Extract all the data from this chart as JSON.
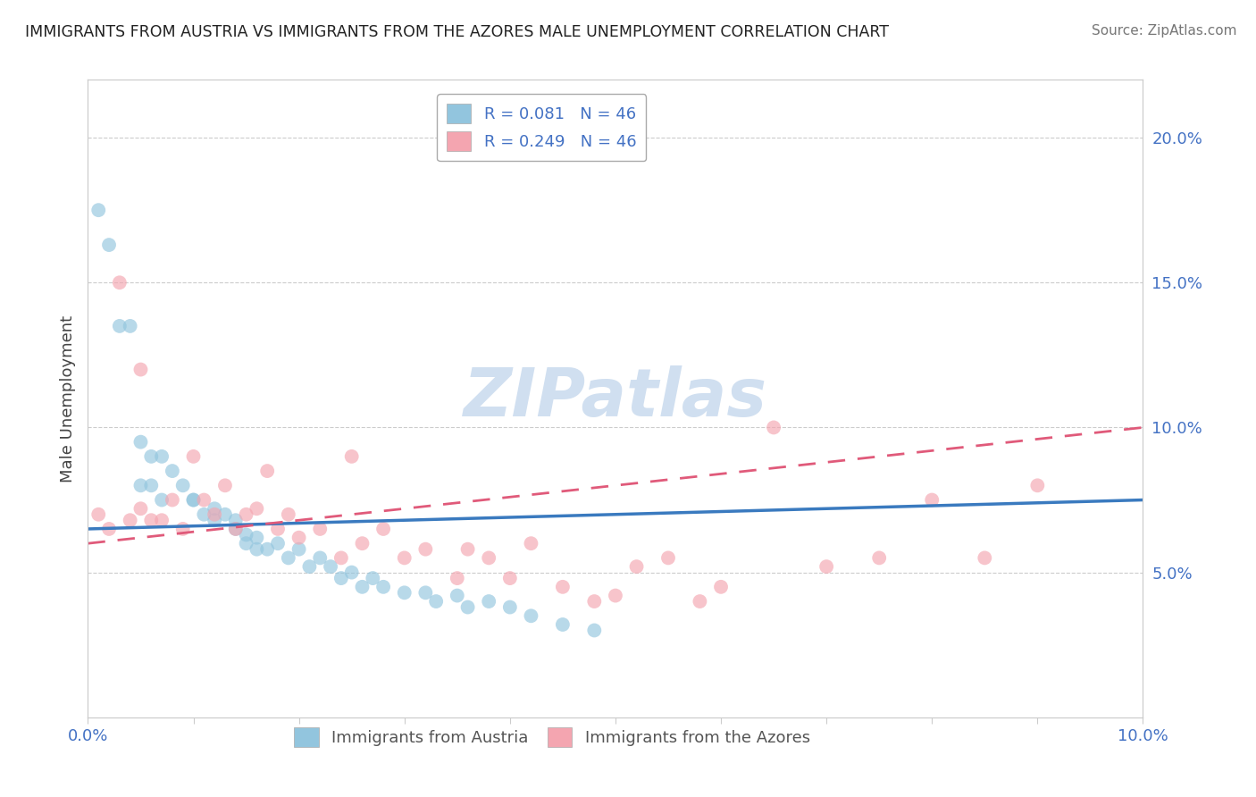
{
  "title": "IMMIGRANTS FROM AUSTRIA VS IMMIGRANTS FROM THE AZORES MALE UNEMPLOYMENT CORRELATION CHART",
  "source": "Source: ZipAtlas.com",
  "ylabel": "Male Unemployment",
  "legend_austria": "R = 0.081   N = 46",
  "legend_azores": "R = 0.249   N = 46",
  "austria_color": "#92c5de",
  "azores_color": "#f4a5b0",
  "austria_line_color": "#3a7abf",
  "azores_line_color": "#e05a7a",
  "background_color": "#ffffff",
  "watermark_color": "#d0dff0",
  "xmin": 0.0,
  "xmax": 0.1,
  "ymin": 0.0,
  "ymax": 0.22,
  "ytick_vals": [
    0.05,
    0.1,
    0.15,
    0.2
  ],
  "ytick_labels": [
    "5.0%",
    "10.0%",
    "15.0%",
    "20.0%"
  ],
  "austria_scatter_x": [
    0.001,
    0.002,
    0.003,
    0.004,
    0.005,
    0.005,
    0.006,
    0.006,
    0.007,
    0.007,
    0.008,
    0.009,
    0.01,
    0.01,
    0.011,
    0.012,
    0.012,
    0.013,
    0.014,
    0.014,
    0.015,
    0.015,
    0.016,
    0.016,
    0.017,
    0.018,
    0.019,
    0.02,
    0.021,
    0.022,
    0.023,
    0.024,
    0.025,
    0.026,
    0.027,
    0.028,
    0.03,
    0.032,
    0.033,
    0.035,
    0.036,
    0.038,
    0.04,
    0.042,
    0.045,
    0.048
  ],
  "austria_scatter_y": [
    0.175,
    0.163,
    0.135,
    0.135,
    0.095,
    0.08,
    0.09,
    0.08,
    0.09,
    0.075,
    0.085,
    0.08,
    0.075,
    0.075,
    0.07,
    0.072,
    0.068,
    0.07,
    0.065,
    0.068,
    0.06,
    0.063,
    0.058,
    0.062,
    0.058,
    0.06,
    0.055,
    0.058,
    0.052,
    0.055,
    0.052,
    0.048,
    0.05,
    0.045,
    0.048,
    0.045,
    0.043,
    0.043,
    0.04,
    0.042,
    0.038,
    0.04,
    0.038,
    0.035,
    0.032,
    0.03
  ],
  "azores_scatter_x": [
    0.001,
    0.002,
    0.003,
    0.004,
    0.005,
    0.005,
    0.006,
    0.007,
    0.008,
    0.009,
    0.01,
    0.011,
    0.012,
    0.013,
    0.014,
    0.015,
    0.016,
    0.017,
    0.018,
    0.019,
    0.02,
    0.022,
    0.024,
    0.025,
    0.026,
    0.028,
    0.03,
    0.032,
    0.035,
    0.036,
    0.038,
    0.04,
    0.042,
    0.045,
    0.048,
    0.05,
    0.052,
    0.055,
    0.058,
    0.06,
    0.065,
    0.07,
    0.075,
    0.08,
    0.085,
    0.09
  ],
  "azores_scatter_y": [
    0.07,
    0.065,
    0.15,
    0.068,
    0.072,
    0.12,
    0.068,
    0.068,
    0.075,
    0.065,
    0.09,
    0.075,
    0.07,
    0.08,
    0.065,
    0.07,
    0.072,
    0.085,
    0.065,
    0.07,
    0.062,
    0.065,
    0.055,
    0.09,
    0.06,
    0.065,
    0.055,
    0.058,
    0.048,
    0.058,
    0.055,
    0.048,
    0.06,
    0.045,
    0.04,
    0.042,
    0.052,
    0.055,
    0.04,
    0.045,
    0.1,
    0.052,
    0.055,
    0.075,
    0.055,
    0.08
  ]
}
